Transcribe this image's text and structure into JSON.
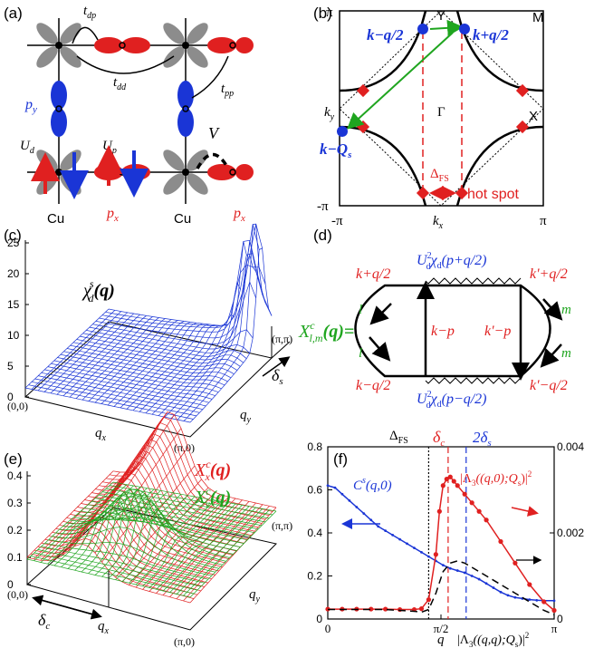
{
  "panels": {
    "a": {
      "label": "(a)",
      "hoppings": {
        "tdp": "t",
        "tdp_sub": "dp",
        "tdd": "t",
        "tdd_sub": "dd",
        "tpp": "t",
        "tpp_sub": "pp"
      },
      "py": "p",
      "py_sub": "y",
      "Ud": "U",
      "Ud_sub": "d",
      "Up": "U",
      "Up_sub": "p",
      "V": "V",
      "cu1": "Cu",
      "cu2": "Cu",
      "px1": "p",
      "px1_sub": "x",
      "px2": "p",
      "px2_sub": "x"
    },
    "b": {
      "label": "(b)",
      "top_left": "π",
      "Y": "Y",
      "M": "M",
      "X": "X",
      "Gamma": "Γ",
      "bottom_left": "-π",
      "x_left": "-π",
      "x_right": "π",
      "kx": "k",
      "kx_sub": "x",
      "ky": "k",
      "ky_sub": "y",
      "k_minus_q2": "k−q/2",
      "k_plus_q2": "k+q/2",
      "k_minus_Qs": "k−Q",
      "Qs_sub": "s",
      "delta_fs": "Δ",
      "delta_fs_sub": "FS",
      "hot_spot": "hot spot"
    },
    "c": {
      "label": "(c)",
      "yticks": [
        "0",
        "5",
        "10",
        "15",
        "20",
        "25"
      ],
      "chi": "χ",
      "chi_sub": "d",
      "chi_sup": "s",
      "chi_arg": "(q)",
      "corner_00": "(0,0)",
      "corner_pi0": "(π,0)",
      "corner_pipi": "(π,π)",
      "qx": "q",
      "qx_sub": "x",
      "qy": "q",
      "qy_sub": "y",
      "delta_s": "δ",
      "delta_s_sub": "s"
    },
    "d": {
      "label": "(d)",
      "top_line": "U",
      "top_line_rest": "χ",
      "top_arg": "(p+q/2)",
      "bottom_line": "U",
      "bottom_arg": "(p−q/2)",
      "k_plus_q2": "k+q/2",
      "kp_plus_q2": "k'+q/2",
      "k_minus_p": "k−p",
      "kp_minus_p": "k'−p",
      "k_minus_q2": "k−q/2",
      "kp_minus_q2": "k'−q/2",
      "l": "l",
      "m": "m",
      "X": "X",
      "X_sub": "l,m",
      "X_sup": "c",
      "X_arg": "(q)="
    },
    "e": {
      "label": "(e)",
      "yticks": [
        "0",
        "0.1",
        "0.2",
        "0.3",
        "0.4"
      ],
      "Xx": "X",
      "Xx_sub": "x",
      "Xy": "X",
      "Xy_sub": "y",
      "X_sup": "c",
      "X_arg": "(q)",
      "corner_00": "(0,0)",
      "corner_pi0": "(π,0)",
      "corner_pipi": "(π,π)",
      "qx": "q",
      "qx_sub": "x",
      "qy": "q",
      "qy_sub": "y",
      "delta_c": "δ",
      "delta_c_sub": "c"
    },
    "f": {
      "label": "(f)",
      "yticks_left": [
        "0",
        "0.2",
        "0.4",
        "0.6",
        "0.8"
      ],
      "yticks_right": [
        "0",
        "0.002",
        "0.004"
      ],
      "xticks": [
        "0",
        "π/2",
        "π"
      ],
      "xlabel": "q",
      "delta_fs": "Δ",
      "delta_fs_sub": "FS",
      "delta_c": "δ",
      "delta_c_sub": "c",
      "two_delta_s": "2δ",
      "two_delta_s_sub": "s",
      "Cs": "C",
      "Cs_sup": "s",
      "Cs_arg": "(q,0)",
      "Lambda_a": "|Λ",
      "Lambda_a_rest": "((q,0);Q",
      "Lambda_b": "|Λ",
      "Lambda_b_rest": "((q,q);Q"
    }
  },
  "chart_data": {
    "type": "line",
    "xlabel": "q",
    "xticks": [
      "0",
      "π/2",
      "π"
    ],
    "xlim": [
      0,
      3.1416
    ],
    "ylim_left": [
      0,
      0.8
    ],
    "ylim_right": [
      0,
      0.004
    ],
    "series": [
      {
        "name": "C^s(q,0)",
        "axis": "left",
        "color": "#1a35d6",
        "x": [
          0,
          0.1,
          0.2,
          0.3,
          0.4,
          0.5,
          0.6,
          0.7,
          0.8,
          0.9,
          1.0,
          1.1,
          1.2,
          1.3,
          1.4,
          1.5,
          1.6,
          1.7,
          1.8,
          1.9,
          2.0,
          2.1,
          2.2,
          2.3,
          2.4,
          2.5,
          2.6,
          2.7,
          2.8,
          2.9,
          3.0,
          3.1416
        ],
        "y": [
          0.62,
          0.61,
          0.58,
          0.55,
          0.52,
          0.49,
          0.46,
          0.43,
          0.41,
          0.39,
          0.37,
          0.35,
          0.33,
          0.31,
          0.29,
          0.27,
          0.25,
          0.235,
          0.225,
          0.215,
          0.2,
          0.185,
          0.165,
          0.145,
          0.125,
          0.11,
          0.1,
          0.095,
          0.09,
          0.087,
          0.085,
          0.085
        ]
      },
      {
        "name": "|Λ3((q,0);Qs)|^2",
        "axis": "right",
        "color": "#e02020",
        "x": [
          0,
          0.2,
          0.4,
          0.6,
          0.8,
          1.0,
          1.2,
          1.3,
          1.4,
          1.5,
          1.55,
          1.6,
          1.65,
          1.7,
          1.75,
          1.8,
          1.9,
          2.0,
          2.1,
          2.2,
          2.4,
          2.6,
          2.8,
          3.0,
          3.1416
        ],
        "y": [
          0.00023,
          0.00023,
          0.00023,
          0.00023,
          0.00023,
          0.00022,
          0.00022,
          0.00024,
          0.00045,
          0.0015,
          0.0025,
          0.0031,
          0.00325,
          0.0033,
          0.0032,
          0.0031,
          0.0029,
          0.0027,
          0.0025,
          0.0023,
          0.0018,
          0.0013,
          0.0008,
          0.0004,
          0.0002
        ]
      },
      {
        "name": "|Λ3((q,q);Qs)|^2",
        "axis": "right",
        "color": "#000000",
        "dashed": true,
        "x": [
          0,
          0.2,
          0.4,
          0.6,
          0.8,
          1.0,
          1.2,
          1.3,
          1.4,
          1.5,
          1.6,
          1.7,
          1.8,
          1.9,
          2.0,
          2.2,
          2.4,
          2.6,
          2.8,
          3.0,
          3.1416
        ],
        "y": [
          0.00022,
          0.00022,
          0.00022,
          0.00022,
          0.00022,
          0.0002,
          0.00018,
          0.00016,
          0.00022,
          0.0006,
          0.0011,
          0.0013,
          0.00135,
          0.0013,
          0.0012,
          0.001,
          0.0008,
          0.0006,
          0.0004,
          0.0002,
          0.0001
        ]
      }
    ],
    "vlines": [
      {
        "label": "ΔFS",
        "x": 1.4,
        "color": "#000000",
        "style": "dotted"
      },
      {
        "label": "δc",
        "x": 1.67,
        "color": "#e02020",
        "style": "dashed"
      },
      {
        "label": "2δs",
        "x": 1.92,
        "color": "#1a35d6",
        "style": "dashed"
      }
    ]
  }
}
